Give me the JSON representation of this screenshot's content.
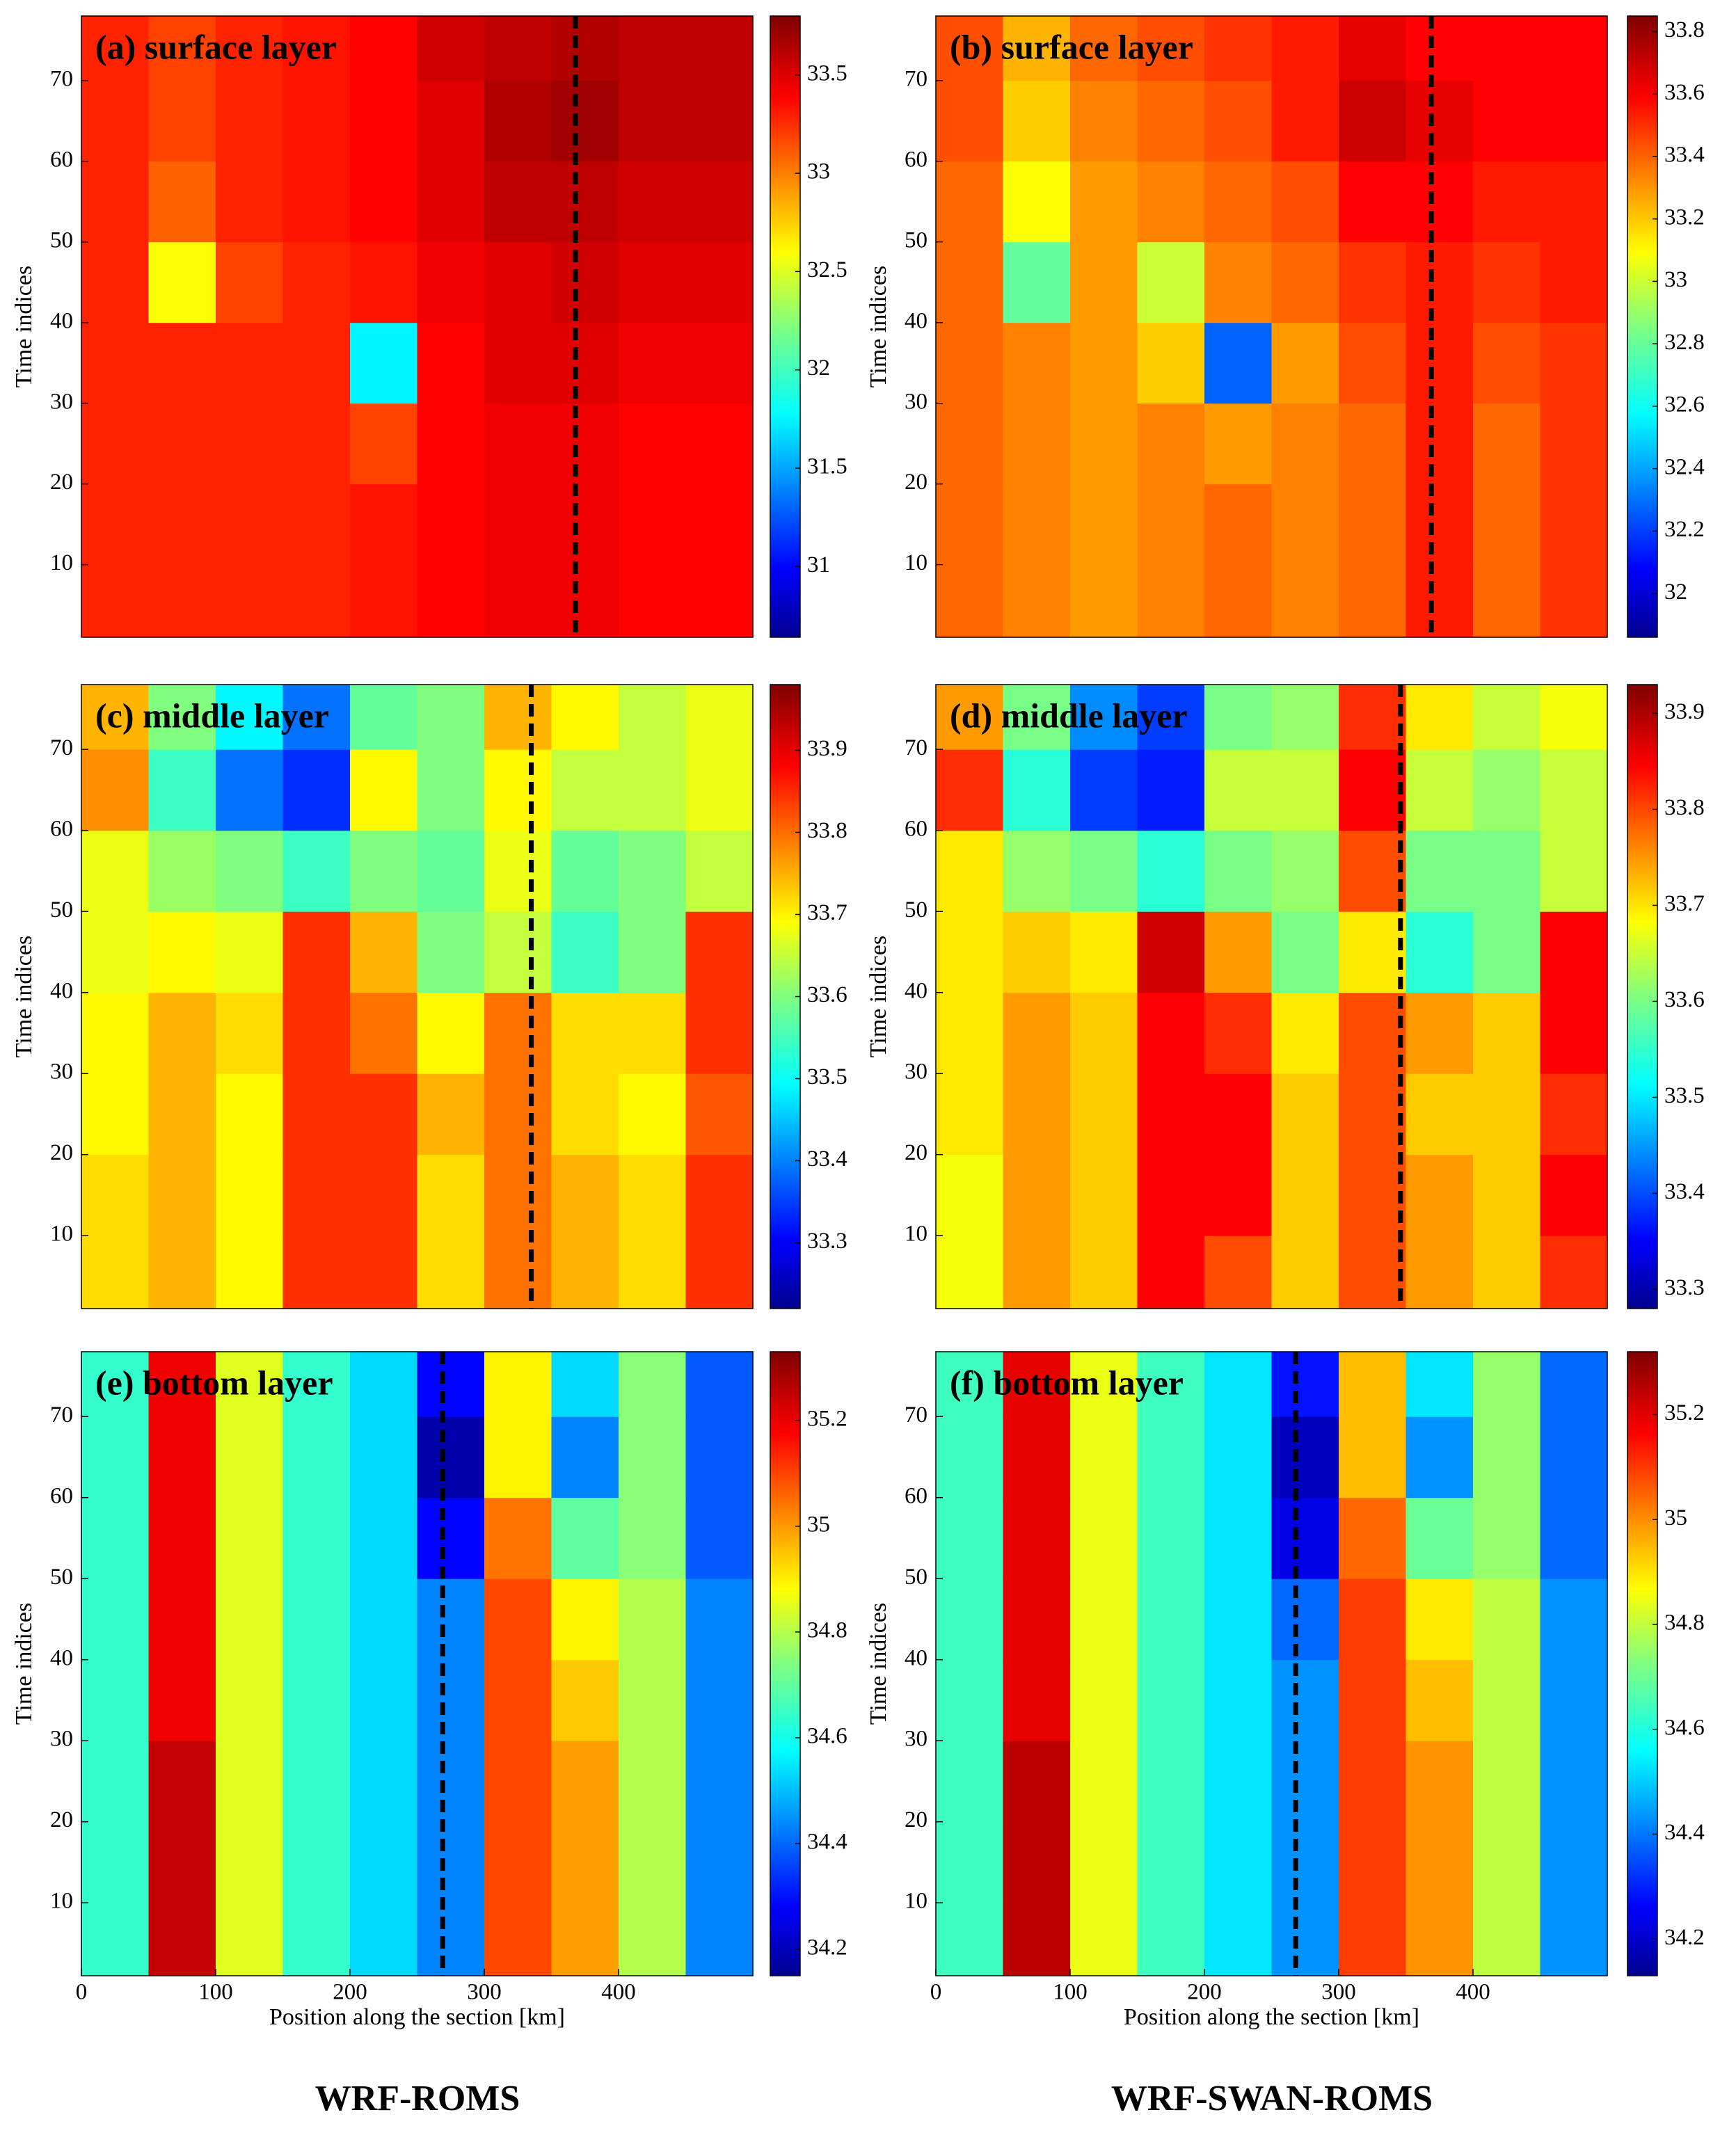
{
  "column_labels": [
    "WRF-ROMS",
    "WRF-SWAN-ROMS"
  ],
  "chart_data": [
    {
      "type": "heatmap",
      "title": "(a) surface layer",
      "ylabel": "Time indices",
      "colormap": "jet",
      "x": [
        25,
        75,
        125,
        175,
        225,
        275,
        325,
        375,
        425,
        475
      ],
      "y": [
        5,
        15,
        25,
        35,
        45,
        55,
        65,
        75
      ],
      "xlim": [
        0,
        500
      ],
      "ylim": [
        1,
        78
      ],
      "yticks": [
        10,
        20,
        30,
        40,
        50,
        60,
        70
      ],
      "clim": [
        30.64,
        33.8
      ],
      "cticks": [
        31,
        31.5,
        32,
        32.5,
        33,
        33.5
      ],
      "reference_x": 368,
      "z": [
        [
          33.3,
          33.3,
          33.3,
          33.3,
          33.35,
          33.4,
          33.45,
          33.45,
          33.4,
          33.4
        ],
        [
          33.3,
          33.3,
          33.3,
          33.3,
          33.35,
          33.4,
          33.45,
          33.45,
          33.4,
          33.4
        ],
        [
          33.3,
          33.3,
          33.3,
          33.3,
          33.2,
          33.4,
          33.45,
          33.45,
          33.4,
          33.4
        ],
        [
          33.3,
          33.3,
          33.3,
          33.3,
          31.8,
          33.4,
          33.5,
          33.5,
          33.45,
          33.45
        ],
        [
          33.3,
          32.6,
          33.2,
          33.3,
          33.35,
          33.45,
          33.5,
          33.55,
          33.5,
          33.5
        ],
        [
          33.3,
          33.1,
          33.3,
          33.35,
          33.4,
          33.5,
          33.6,
          33.6,
          33.55,
          33.55
        ],
        [
          33.3,
          33.2,
          33.3,
          33.35,
          33.4,
          33.5,
          33.65,
          33.7,
          33.6,
          33.6
        ],
        [
          33.3,
          33.2,
          33.3,
          33.35,
          33.4,
          33.55,
          33.6,
          33.65,
          33.6,
          33.6
        ]
      ]
    },
    {
      "type": "heatmap",
      "title": "(b) surface layer",
      "ylabel": "Time indices",
      "colormap": "jet",
      "x": [
        25,
        75,
        125,
        175,
        225,
        275,
        325,
        375,
        425,
        475
      ],
      "y": [
        5,
        15,
        25,
        35,
        45,
        55,
        65,
        75
      ],
      "xlim": [
        0,
        500
      ],
      "ylim": [
        1,
        78
      ],
      "yticks": [
        10,
        20,
        30,
        40,
        50,
        60,
        70
      ],
      "clim": [
        31.86,
        33.85
      ],
      "cticks": [
        32,
        32.2,
        32.4,
        32.6,
        32.8,
        33,
        33.2,
        33.4,
        33.6,
        33.8
      ],
      "reference_x": 369,
      "z": [
        [
          33.4,
          33.35,
          33.3,
          33.35,
          33.4,
          33.35,
          33.4,
          33.55,
          33.4,
          33.5
        ],
        [
          33.4,
          33.35,
          33.3,
          33.35,
          33.4,
          33.35,
          33.4,
          33.55,
          33.4,
          33.5
        ],
        [
          33.4,
          33.35,
          33.3,
          33.35,
          33.3,
          33.35,
          33.4,
          33.55,
          33.4,
          33.5
        ],
        [
          33.4,
          33.35,
          33.3,
          33.2,
          32.3,
          33.3,
          33.45,
          33.55,
          33.45,
          33.5
        ],
        [
          33.4,
          32.8,
          33.3,
          33.0,
          33.35,
          33.4,
          33.5,
          33.55,
          33.5,
          33.55
        ],
        [
          33.4,
          33.1,
          33.3,
          33.35,
          33.4,
          33.45,
          33.6,
          33.6,
          33.55,
          33.55
        ],
        [
          33.45,
          33.2,
          33.35,
          33.4,
          33.45,
          33.55,
          33.7,
          33.65,
          33.6,
          33.6
        ],
        [
          33.45,
          33.25,
          33.4,
          33.45,
          33.5,
          33.55,
          33.65,
          33.6,
          33.6,
          33.6
        ]
      ]
    },
    {
      "type": "heatmap",
      "title": "(c) middle layer",
      "ylabel": "Time indices",
      "colormap": "jet",
      "x": [
        25,
        75,
        125,
        175,
        225,
        275,
        325,
        375,
        425,
        475
      ],
      "y": [
        5,
        15,
        25,
        35,
        45,
        55,
        65,
        75
      ],
      "xlim": [
        0,
        500
      ],
      "ylim": [
        1,
        78
      ],
      "yticks": [
        10,
        20,
        30,
        40,
        50,
        60,
        70
      ],
      "clim": [
        33.22,
        33.98
      ],
      "cticks": [
        33.3,
        33.4,
        33.5,
        33.6,
        33.7,
        33.8,
        33.9
      ],
      "reference_x": 335,
      "z": [
        [
          33.72,
          33.75,
          33.7,
          33.85,
          33.85,
          33.72,
          33.8,
          33.75,
          33.72,
          33.85
        ],
        [
          33.72,
          33.75,
          33.7,
          33.85,
          33.85,
          33.72,
          33.8,
          33.75,
          33.72,
          33.85
        ],
        [
          33.7,
          33.75,
          33.7,
          33.85,
          33.85,
          33.75,
          33.8,
          33.72,
          33.7,
          33.82
        ],
        [
          33.7,
          33.75,
          33.72,
          33.85,
          33.8,
          33.7,
          33.8,
          33.72,
          33.72,
          33.85
        ],
        [
          33.68,
          33.7,
          33.68,
          33.85,
          33.75,
          33.6,
          33.65,
          33.55,
          33.6,
          33.85
        ],
        [
          33.68,
          33.62,
          33.6,
          33.55,
          33.6,
          33.58,
          33.68,
          33.58,
          33.6,
          33.65
        ],
        [
          33.78,
          33.55,
          33.4,
          33.35,
          33.7,
          33.6,
          33.7,
          33.65,
          33.65,
          33.68
        ],
        [
          33.75,
          33.6,
          33.5,
          33.4,
          33.58,
          33.6,
          33.75,
          33.7,
          33.65,
          33.68
        ]
      ]
    },
    {
      "type": "heatmap",
      "title": "(d) middle layer",
      "ylabel": "Time indices",
      "colormap": "jet",
      "x": [
        25,
        75,
        125,
        175,
        225,
        275,
        325,
        375,
        425,
        475
      ],
      "y": [
        5,
        15,
        25,
        35,
        45,
        55,
        65,
        75
      ],
      "xlim": [
        0,
        500
      ],
      "ylim": [
        1,
        78
      ],
      "yticks": [
        10,
        20,
        30,
        40,
        50,
        60,
        70
      ],
      "clim": [
        33.28,
        33.93
      ],
      "cticks": [
        33.3,
        33.4,
        33.5,
        33.6,
        33.7,
        33.8,
        33.9
      ],
      "reference_x": 346,
      "z": [
        [
          33.68,
          33.75,
          33.72,
          33.85,
          33.8,
          33.72,
          33.8,
          33.75,
          33.72,
          33.82
        ],
        [
          33.68,
          33.75,
          33.72,
          33.85,
          33.85,
          33.72,
          33.8,
          33.75,
          33.72,
          33.85
        ],
        [
          33.7,
          33.75,
          33.72,
          33.85,
          33.85,
          33.72,
          33.8,
          33.72,
          33.72,
          33.82
        ],
        [
          33.7,
          33.75,
          33.72,
          33.85,
          33.82,
          33.7,
          33.8,
          33.75,
          33.72,
          33.85
        ],
        [
          33.7,
          33.72,
          33.7,
          33.88,
          33.75,
          33.6,
          33.7,
          33.55,
          33.6,
          33.85
        ],
        [
          33.7,
          33.62,
          33.6,
          33.55,
          33.6,
          33.62,
          33.8,
          33.6,
          33.6,
          33.65
        ],
        [
          33.82,
          33.55,
          33.4,
          33.38,
          33.65,
          33.65,
          33.85,
          33.65,
          33.62,
          33.65
        ],
        [
          33.75,
          33.6,
          33.45,
          33.4,
          33.6,
          33.62,
          33.82,
          33.7,
          33.65,
          33.68
        ]
      ]
    },
    {
      "type": "heatmap",
      "title": "(e) bottom layer",
      "ylabel": "Time indices",
      "xlabel": "Position along the section [km]",
      "colormap": "jet",
      "x": [
        25,
        75,
        125,
        175,
        225,
        275,
        325,
        375,
        425,
        475
      ],
      "y": [
        5,
        15,
        25,
        35,
        45,
        55,
        65,
        75
      ],
      "xlim": [
        0,
        500
      ],
      "ylim": [
        1,
        78
      ],
      "xticks": [
        0,
        100,
        200,
        300,
        400
      ],
      "yticks": [
        10,
        20,
        30,
        40,
        50,
        60,
        70
      ],
      "clim": [
        34.15,
        35.33
      ],
      "cticks": [
        34.2,
        34.4,
        34.6,
        34.8,
        35,
        35.2
      ],
      "reference_x": 269,
      "z": [
        [
          34.65,
          35.25,
          34.85,
          34.65,
          34.55,
          34.45,
          35.1,
          35.0,
          34.8,
          34.45
        ],
        [
          34.65,
          35.25,
          34.85,
          34.65,
          34.55,
          34.45,
          35.1,
          35.0,
          34.8,
          34.45
        ],
        [
          34.65,
          35.25,
          34.85,
          34.65,
          34.55,
          34.45,
          35.1,
          35.0,
          34.8,
          34.45
        ],
        [
          34.65,
          35.2,
          34.85,
          34.65,
          34.55,
          34.45,
          35.1,
          34.95,
          34.8,
          34.45
        ],
        [
          34.65,
          35.2,
          34.85,
          34.65,
          34.55,
          34.45,
          35.1,
          34.9,
          34.8,
          34.45
        ],
        [
          34.65,
          35.2,
          34.85,
          34.65,
          34.55,
          34.3,
          35.05,
          34.7,
          34.75,
          34.4
        ],
        [
          34.65,
          35.2,
          34.85,
          34.65,
          34.55,
          34.2,
          34.9,
          34.45,
          34.75,
          34.4
        ],
        [
          34.65,
          35.2,
          34.85,
          34.65,
          34.55,
          34.3,
          34.9,
          34.55,
          34.75,
          34.4
        ]
      ]
    },
    {
      "type": "heatmap",
      "title": "(f) bottom layer",
      "ylabel": "Time indices",
      "xlabel": "Position along the section [km]",
      "colormap": "jet",
      "x": [
        25,
        75,
        125,
        175,
        225,
        275,
        325,
        375,
        425,
        475
      ],
      "y": [
        5,
        15,
        25,
        35,
        45,
        55,
        65,
        75
      ],
      "xlim": [
        0,
        500
      ],
      "ylim": [
        1,
        78
      ],
      "xticks": [
        0,
        100,
        200,
        300,
        400
      ],
      "yticks": [
        10,
        20,
        30,
        40,
        50,
        60,
        70
      ],
      "clim": [
        34.13,
        35.32
      ],
      "cticks": [
        34.2,
        34.4,
        34.6,
        34.8,
        35,
        35.2
      ],
      "reference_x": 268,
      "z": [
        [
          34.65,
          35.25,
          34.85,
          34.65,
          34.55,
          34.45,
          35.1,
          35.0,
          34.8,
          34.45
        ],
        [
          34.65,
          35.25,
          34.85,
          34.65,
          34.55,
          34.45,
          35.1,
          35.0,
          34.8,
          34.45
        ],
        [
          34.65,
          35.25,
          34.85,
          34.65,
          34.55,
          34.45,
          35.1,
          35.0,
          34.8,
          34.45
        ],
        [
          34.65,
          35.2,
          34.85,
          34.65,
          34.55,
          34.45,
          35.1,
          34.95,
          34.8,
          34.45
        ],
        [
          34.65,
          35.2,
          34.85,
          34.65,
          34.55,
          34.4,
          35.1,
          34.9,
          34.8,
          34.45
        ],
        [
          34.65,
          35.2,
          34.85,
          34.65,
          34.55,
          34.25,
          35.05,
          34.7,
          34.75,
          34.4
        ],
        [
          34.65,
          35.2,
          34.85,
          34.65,
          34.55,
          34.2,
          34.95,
          34.45,
          34.75,
          34.4
        ],
        [
          34.65,
          35.2,
          34.85,
          34.65,
          34.55,
          34.3,
          34.95,
          34.55,
          34.75,
          34.4
        ]
      ]
    }
  ]
}
